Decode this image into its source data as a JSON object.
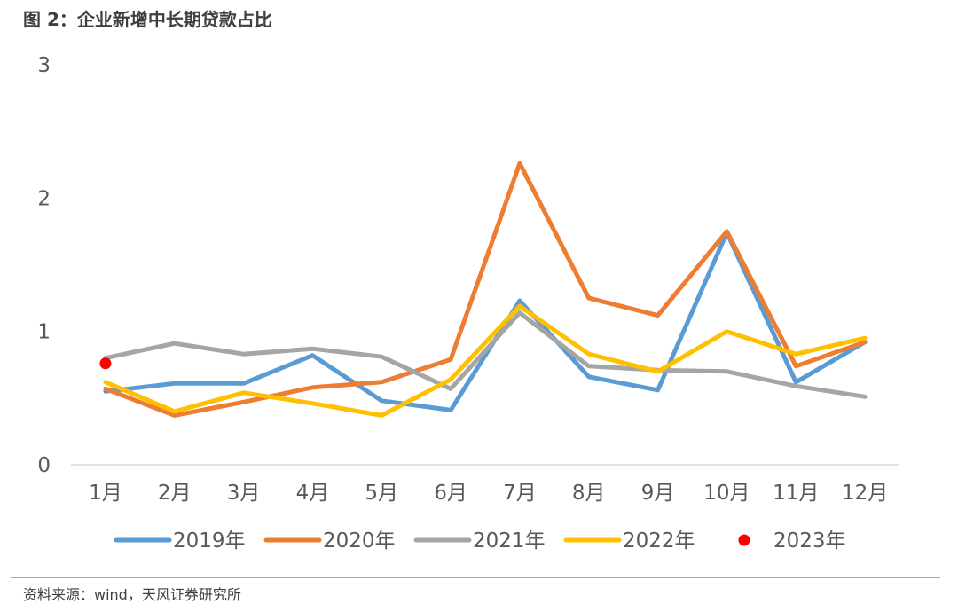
{
  "figure": {
    "title": "图 2：企业新增中长期贷款占比",
    "source": "资料来源：wind，天风证券研究所",
    "rule_color": "#c8a35c"
  },
  "chart_data": {
    "type": "line",
    "categories": [
      "1月",
      "2月",
      "3月",
      "4月",
      "5月",
      "6月",
      "7月",
      "8月",
      "9月",
      "10月",
      "11月",
      "12月"
    ],
    "ylim": [
      0,
      3
    ],
    "yticks": [
      0,
      1,
      2,
      3
    ],
    "grid": false,
    "legend": "bottom",
    "series": [
      {
        "name": "2019年",
        "color": "#5b9bd5",
        "values": [
          0.55,
          0.61,
          0.61,
          0.82,
          0.48,
          0.41,
          1.23,
          0.66,
          0.56,
          1.74,
          0.62,
          0.92
        ]
      },
      {
        "name": "2020年",
        "color": "#ed7d31",
        "values": [
          0.57,
          0.37,
          0.47,
          0.58,
          0.62,
          0.79,
          2.26,
          1.25,
          1.12,
          1.75,
          0.74,
          0.92
        ]
      },
      {
        "name": "2021年",
        "color": "#a5a5a5",
        "values": [
          0.8,
          0.91,
          0.83,
          0.87,
          0.81,
          0.57,
          1.14,
          0.74,
          0.71,
          0.7,
          0.59,
          0.51
        ]
      },
      {
        "name": "2022年",
        "color": "#ffc000",
        "values": [
          0.62,
          0.4,
          0.54,
          0.46,
          0.37,
          0.64,
          1.19,
          0.83,
          0.7,
          1.0,
          0.83,
          0.95
        ]
      },
      {
        "name": "2023年",
        "color": "#ff0000",
        "marker_only": true,
        "values": [
          0.76,
          null,
          null,
          null,
          null,
          null,
          null,
          null,
          null,
          null,
          null,
          null
        ]
      }
    ]
  }
}
